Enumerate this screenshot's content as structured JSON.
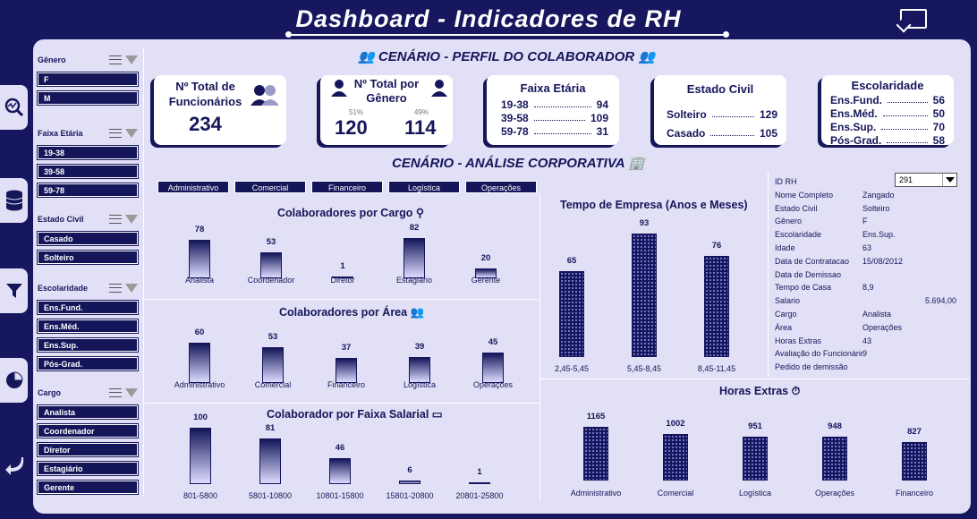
{
  "header": {
    "title": "Dashboard - Indicadores de RH"
  },
  "sections": {
    "perfil": "CENÁRIO - PERFIL DO COLABORADOR",
    "analise": "CENÁRIO - ANÁLISE CORPORATIVA"
  },
  "slicers": [
    {
      "title": "Gênero",
      "items": [
        "F",
        "M"
      ]
    },
    {
      "title": "Faixa Etária",
      "items": [
        "19-38",
        "39-58",
        "59-78"
      ]
    },
    {
      "title": "Estado Civil",
      "items": [
        "Casado",
        "Solteiro"
      ]
    },
    {
      "title": "Escolaridade",
      "items": [
        "Ens.Fund.",
        "Ens.Méd.",
        "Ens.Sup.",
        "Pós-Grad."
      ]
    },
    {
      "title": "Cargo",
      "items": [
        "Analista",
        "Coordenador",
        "Diretor",
        "Estagiário",
        "Gerente"
      ]
    }
  ],
  "kpis": {
    "total": {
      "label1": "Nº Total de",
      "label2": "Funcionários",
      "value": "234"
    },
    "genero": {
      "label1": "Nº Total por",
      "label2": "Gênero",
      "m_pct": "51%",
      "m": "120",
      "f_pct": "49%",
      "f": "114"
    },
    "faixa": {
      "title": "Faixa Etária",
      "rows": [
        {
          "k": "19-38",
          "v": "94"
        },
        {
          "k": "39-58",
          "v": "109"
        },
        {
          "k": "59-78",
          "v": "31"
        }
      ]
    },
    "civil": {
      "title": "Estado Civil",
      "rows": [
        {
          "k": "Solteiro",
          "v": "129"
        },
        {
          "k": "Casado",
          "v": "105"
        }
      ]
    },
    "escol": {
      "title": "Escolaridade",
      "rows": [
        {
          "k": "Ens.Fund.",
          "v": "56"
        },
        {
          "k": "Ens.Méd.",
          "v": "50"
        },
        {
          "k": "Ens.Sup.",
          "v": "70"
        },
        {
          "k": "Pós-Grad.",
          "v": "58"
        }
      ]
    }
  },
  "area_tabs": [
    "Administrativo",
    "Comercial",
    "Financeiro",
    "Logística",
    "Operações"
  ],
  "chart_data": [
    {
      "type": "bar",
      "title": "Colaboradores por Cargo",
      "categories": [
        "Analista",
        "Coordenador",
        "Diretor",
        "Estagiário",
        "Gerente"
      ],
      "values": [
        78,
        53,
        1,
        82,
        20
      ]
    },
    {
      "type": "bar",
      "title": "Colaboradores por Área",
      "categories": [
        "Administrativo",
        "Comercial",
        "Financeiro",
        "Logística",
        "Operações"
      ],
      "values": [
        60,
        53,
        37,
        39,
        45
      ]
    },
    {
      "type": "bar",
      "title": "Colaborador por Faixa Salarial",
      "categories": [
        "801-5800",
        "5801-10800",
        "10801-15800",
        "15801-20800",
        "20801-25800"
      ],
      "values": [
        100,
        81,
        46,
        6,
        1
      ]
    },
    {
      "type": "bar",
      "title": "Tempo de Empresa (Anos e Meses)",
      "categories": [
        "2,45-5,45",
        "5,45-8,45",
        "8,45-11,45"
      ],
      "values": [
        65,
        93,
        76
      ]
    },
    {
      "type": "bar",
      "title": "Horas Extras",
      "categories": [
        "Administrativo",
        "Comercial",
        "Logística",
        "Operações",
        "Financeiro"
      ],
      "values": [
        1165,
        1002,
        951,
        948,
        827
      ]
    }
  ],
  "details": {
    "selected_id": "291",
    "rows": [
      {
        "k": "ID RH",
        "v": ""
      },
      {
        "k": "Nome Completo",
        "v": "Zangado"
      },
      {
        "k": "Estado Civil",
        "v": "Solteiro"
      },
      {
        "k": "Gênero",
        "v": "F"
      },
      {
        "k": "Escolaridade",
        "v": "Ens.Sup."
      },
      {
        "k": "Idade",
        "v": "63"
      },
      {
        "k": "Data de Contratacao",
        "v": "15/08/2012"
      },
      {
        "k": "Data de Demissao",
        "v": ""
      },
      {
        "k": "Tempo de Casa",
        "v": "8,9"
      },
      {
        "k": "Salario",
        "v": "5.694,00"
      },
      {
        "k": "Cargo",
        "v": "Analista"
      },
      {
        "k": "Área",
        "v": "Operações"
      },
      {
        "k": "Horas Extras",
        "v": "43"
      },
      {
        "k": "Avaliação do Funcionário",
        "v": "9"
      },
      {
        "k": "Pedido de demissão",
        "v": ""
      }
    ]
  }
}
